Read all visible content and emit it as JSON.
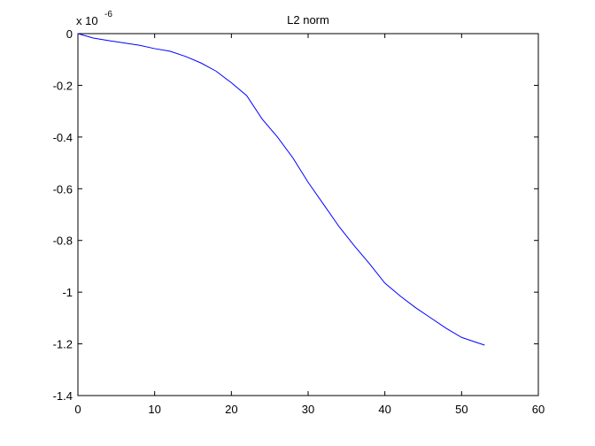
{
  "chart_data": {
    "type": "line",
    "title": "L2 norm",
    "y_scale_label": {
      "base": "x 10",
      "exponent": "-6"
    },
    "x": [
      0,
      2,
      4,
      6,
      8,
      10,
      12,
      14,
      16,
      18,
      20,
      22,
      24,
      26,
      28,
      30,
      32,
      34,
      36,
      38,
      40,
      42,
      44,
      46,
      48,
      50,
      52,
      53
    ],
    "series": [
      {
        "color": "#0000ff",
        "values": [
          0,
          -0.017,
          -0.027,
          -0.036,
          -0.045,
          -0.058,
          -0.068,
          -0.088,
          -0.113,
          -0.145,
          -0.19,
          -0.24,
          -0.33,
          -0.4,
          -0.48,
          -0.575,
          -0.66,
          -0.745,
          -0.82,
          -0.89,
          -0.965,
          -1.015,
          -1.06,
          -1.1,
          -1.14,
          -1.175,
          -1.195,
          -1.205
        ]
      }
    ],
    "xlim": [
      0,
      60
    ],
    "xticks": [
      0,
      10,
      20,
      30,
      40,
      50,
      60
    ],
    "ylim": [
      -1.4,
      0
    ],
    "yticks": [
      -1.4,
      -1.2,
      -1,
      -0.8,
      -0.6,
      -0.4,
      -0.2,
      0
    ]
  }
}
